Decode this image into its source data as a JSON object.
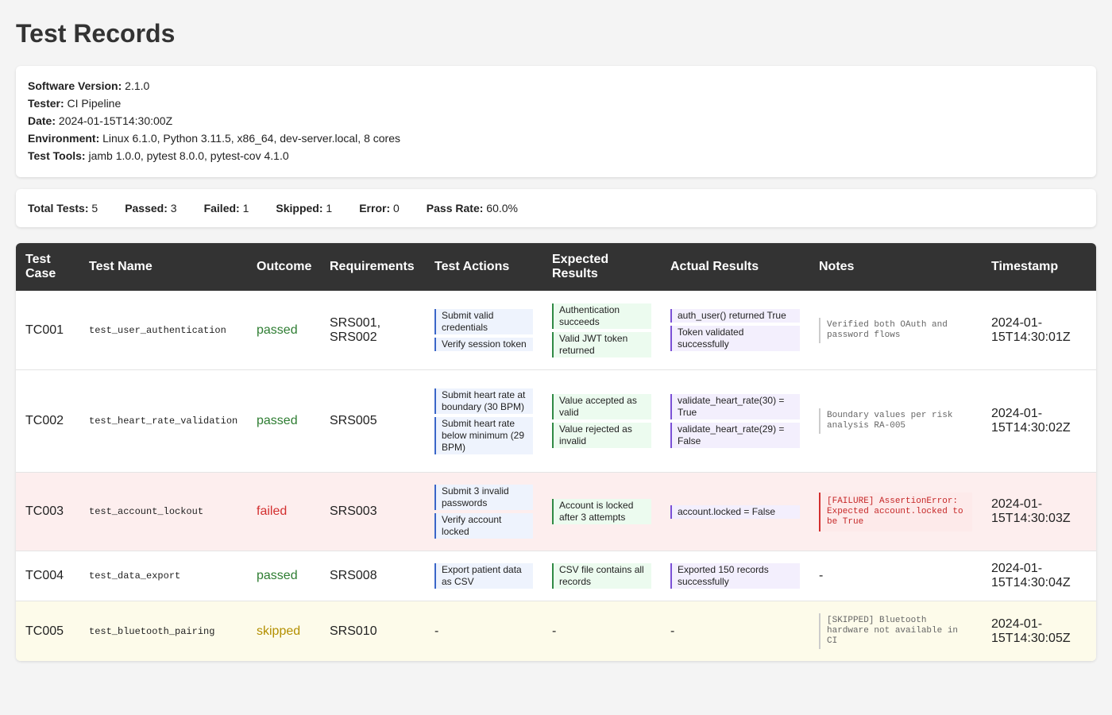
{
  "page": {
    "title": "Test Records"
  },
  "meta": [
    {
      "label": "Software Version:",
      "value": "2.1.0"
    },
    {
      "label": "Tester:",
      "value": "CI Pipeline"
    },
    {
      "label": "Date:",
      "value": "2024-01-15T14:30:00Z"
    },
    {
      "label": "Environment:",
      "value": "Linux 6.1.0, Python 3.11.5, x86_64, dev-server.local, 8 cores"
    },
    {
      "label": "Test Tools:",
      "value": "jamb 1.0.0, pytest 8.0.0, pytest-cov 4.1.0"
    }
  ],
  "summary": [
    {
      "label": "Total Tests:",
      "value": "5"
    },
    {
      "label": "Passed:",
      "value": "3"
    },
    {
      "label": "Failed:",
      "value": "1"
    },
    {
      "label": "Skipped:",
      "value": "1"
    },
    {
      "label": "Error:",
      "value": "0"
    },
    {
      "label": "Pass Rate:",
      "value": "60.0%"
    }
  ],
  "table": {
    "headers": [
      "Test Case",
      "Test Name",
      "Outcome",
      "Requirements",
      "Test Actions",
      "Expected Results",
      "Actual Results",
      "Notes",
      "Timestamp"
    ],
    "rows": [
      {
        "id": "TC001",
        "name": "test_user_authentication",
        "outcome": "passed",
        "requirements": "SRS001, SRS002",
        "actions": [
          "Submit valid credentials",
          "Verify session token"
        ],
        "expected": [
          "Authentication succeeds",
          "Valid JWT token returned"
        ],
        "actual": [
          "auth_user() returned True",
          "Token validated successfully"
        ],
        "notes": "Verified both OAuth and password flows",
        "timestamp": "2024-01-15T14:30:01Z"
      },
      {
        "id": "TC002",
        "name": "test_heart_rate_validation",
        "outcome": "passed",
        "requirements": "SRS005",
        "actions": [
          "Submit heart rate at boundary (30 BPM)",
          "Submit heart rate below minimum (29 BPM)"
        ],
        "expected": [
          "Value accepted as valid",
          "Value rejected as invalid"
        ],
        "actual": [
          "validate_heart_rate(30) = True",
          "validate_heart_rate(29) = False"
        ],
        "notes": "Boundary values per risk analysis RA-005",
        "timestamp": "2024-01-15T14:30:02Z"
      },
      {
        "id": "TC003",
        "name": "test_account_lockout",
        "outcome": "failed",
        "requirements": "SRS003",
        "actions": [
          "Submit 3 invalid passwords",
          "Verify account locked"
        ],
        "expected": [
          "Account is locked after 3 attempts"
        ],
        "actual": [
          "account.locked = False"
        ],
        "notes": "[FAILURE] AssertionError: Expected account.locked to be True",
        "timestamp": "2024-01-15T14:30:03Z"
      },
      {
        "id": "TC004",
        "name": "test_data_export",
        "outcome": "passed",
        "requirements": "SRS008",
        "actions": [
          "Export patient data as CSV"
        ],
        "expected": [
          "CSV file contains all records"
        ],
        "actual": [
          "Exported 150 records successfully"
        ],
        "notes": "-",
        "timestamp": "2024-01-15T14:30:04Z"
      },
      {
        "id": "TC005",
        "name": "test_bluetooth_pairing",
        "outcome": "skipped",
        "requirements": "SRS010",
        "actions": [],
        "expected": [],
        "actual": [],
        "empty_marker": "-",
        "notes": "[SKIPPED] Bluetooth hardware not available in CI",
        "timestamp": "2024-01-15T14:30:05Z"
      }
    ]
  },
  "colors": {
    "passed": "#2e7d32",
    "failed": "#d32f2f",
    "skipped": "#b38f00",
    "header_bg": "#333333",
    "failed_row_bg": "#fdeeee",
    "skipped_row_bg": "#fdfbea"
  }
}
